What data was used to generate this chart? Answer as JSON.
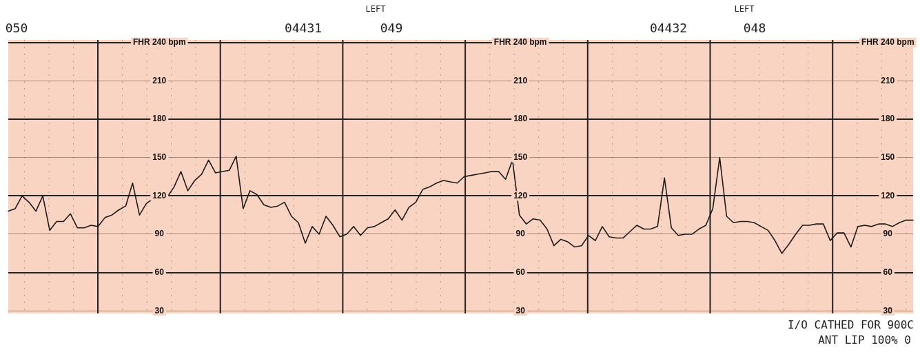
{
  "chart_data": {
    "type": "line",
    "categories": [
      null,
      null,
      null,
      null,
      null,
      null,
      null,
      null,
      null,
      null,
      null,
      null,
      null,
      null,
      null,
      null,
      null,
      null,
      null,
      null,
      null,
      null,
      null,
      null,
      null,
      null,
      null,
      null,
      null,
      null,
      null,
      null,
      null,
      null,
      null,
      null,
      null,
      null,
      null,
      null,
      null,
      null,
      null,
      null,
      null,
      null,
      null,
      null,
      null,
      null,
      null,
      null,
      null,
      null,
      null,
      null,
      null,
      null,
      null,
      null,
      null,
      null,
      null,
      null,
      null,
      null,
      null,
      null,
      null,
      null,
      null,
      null,
      null,
      null,
      null,
      null,
      null,
      null,
      null,
      null,
      null,
      null,
      null,
      null,
      null,
      null,
      null,
      null,
      null,
      null,
      null,
      null,
      null,
      null,
      null,
      null,
      null,
      null,
      null,
      null,
      null,
      null,
      null,
      null,
      null,
      null,
      null,
      null,
      null,
      null,
      null,
      null,
      null,
      null,
      null,
      null,
      null,
      null,
      null,
      null,
      null,
      null,
      null,
      null,
      null,
      null,
      null,
      null,
      null,
      null,
      null,
      null
    ],
    "series": [
      {
        "color": "#1a1a1a",
        "values": [
          108,
          110,
          120,
          115,
          108,
          120,
          93,
          100,
          100,
          106,
          95,
          95,
          97,
          96,
          103,
          105,
          109,
          112,
          130,
          105,
          114,
          118,
          120,
          119,
          127,
          139,
          124,
          132,
          137,
          148,
          138,
          139,
          140,
          151,
          110,
          124,
          121,
          113,
          111,
          112,
          115,
          104,
          99,
          83,
          96,
          90,
          104,
          97,
          88,
          90,
          96,
          89,
          95,
          96,
          99,
          102,
          109,
          101,
          111,
          115,
          125,
          127,
          130,
          132,
          131,
          130,
          135,
          136,
          137,
          138,
          139,
          139,
          133,
          148,
          105,
          98,
          102,
          101,
          94,
          81,
          86,
          84,
          80,
          81,
          89,
          85,
          96,
          88,
          87,
          87,
          92,
          97,
          94,
          94,
          96,
          134,
          95,
          89,
          90,
          90,
          94,
          97,
          110,
          150,
          104,
          99,
          100,
          100,
          99,
          96,
          93,
          85,
          75,
          82,
          90,
          97,
          97,
          98,
          98,
          85,
          91,
          91,
          80,
          96,
          97,
          96,
          98,
          98,
          96,
          99,
          101,
          101
        ]
      }
    ],
    "ylim": [
      28,
      242
    ],
    "yticks": [
      30,
      60,
      90,
      120,
      150,
      180,
      210,
      {
        "value": 240,
        "label": "FHR 240 bpm"
      }
    ],
    "y2lim": [
      28,
      242
    ],
    "y2ticks": [
      30,
      60,
      90,
      120,
      150,
      180,
      210,
      {
        "value": 240,
        "label": "FHR 240 bpm"
      }
    ],
    "y3lim": [
      28,
      242
    ],
    "y3ticks": [
      30,
      60,
      90,
      120,
      150,
      180,
      210,
      {
        "value": 240,
        "label": "FHR 240 bpm"
      }
    ],
    "grid": true,
    "legend": false,
    "marker": "none",
    "line_style": "solid",
    "annotations": [
      "050",
      "04431",
      "049",
      "LEFT",
      "04432",
      "048",
      "LEFT",
      "I/O CATHED FOR 900C",
      "ANT LIP 100% 0"
    ]
  }
}
